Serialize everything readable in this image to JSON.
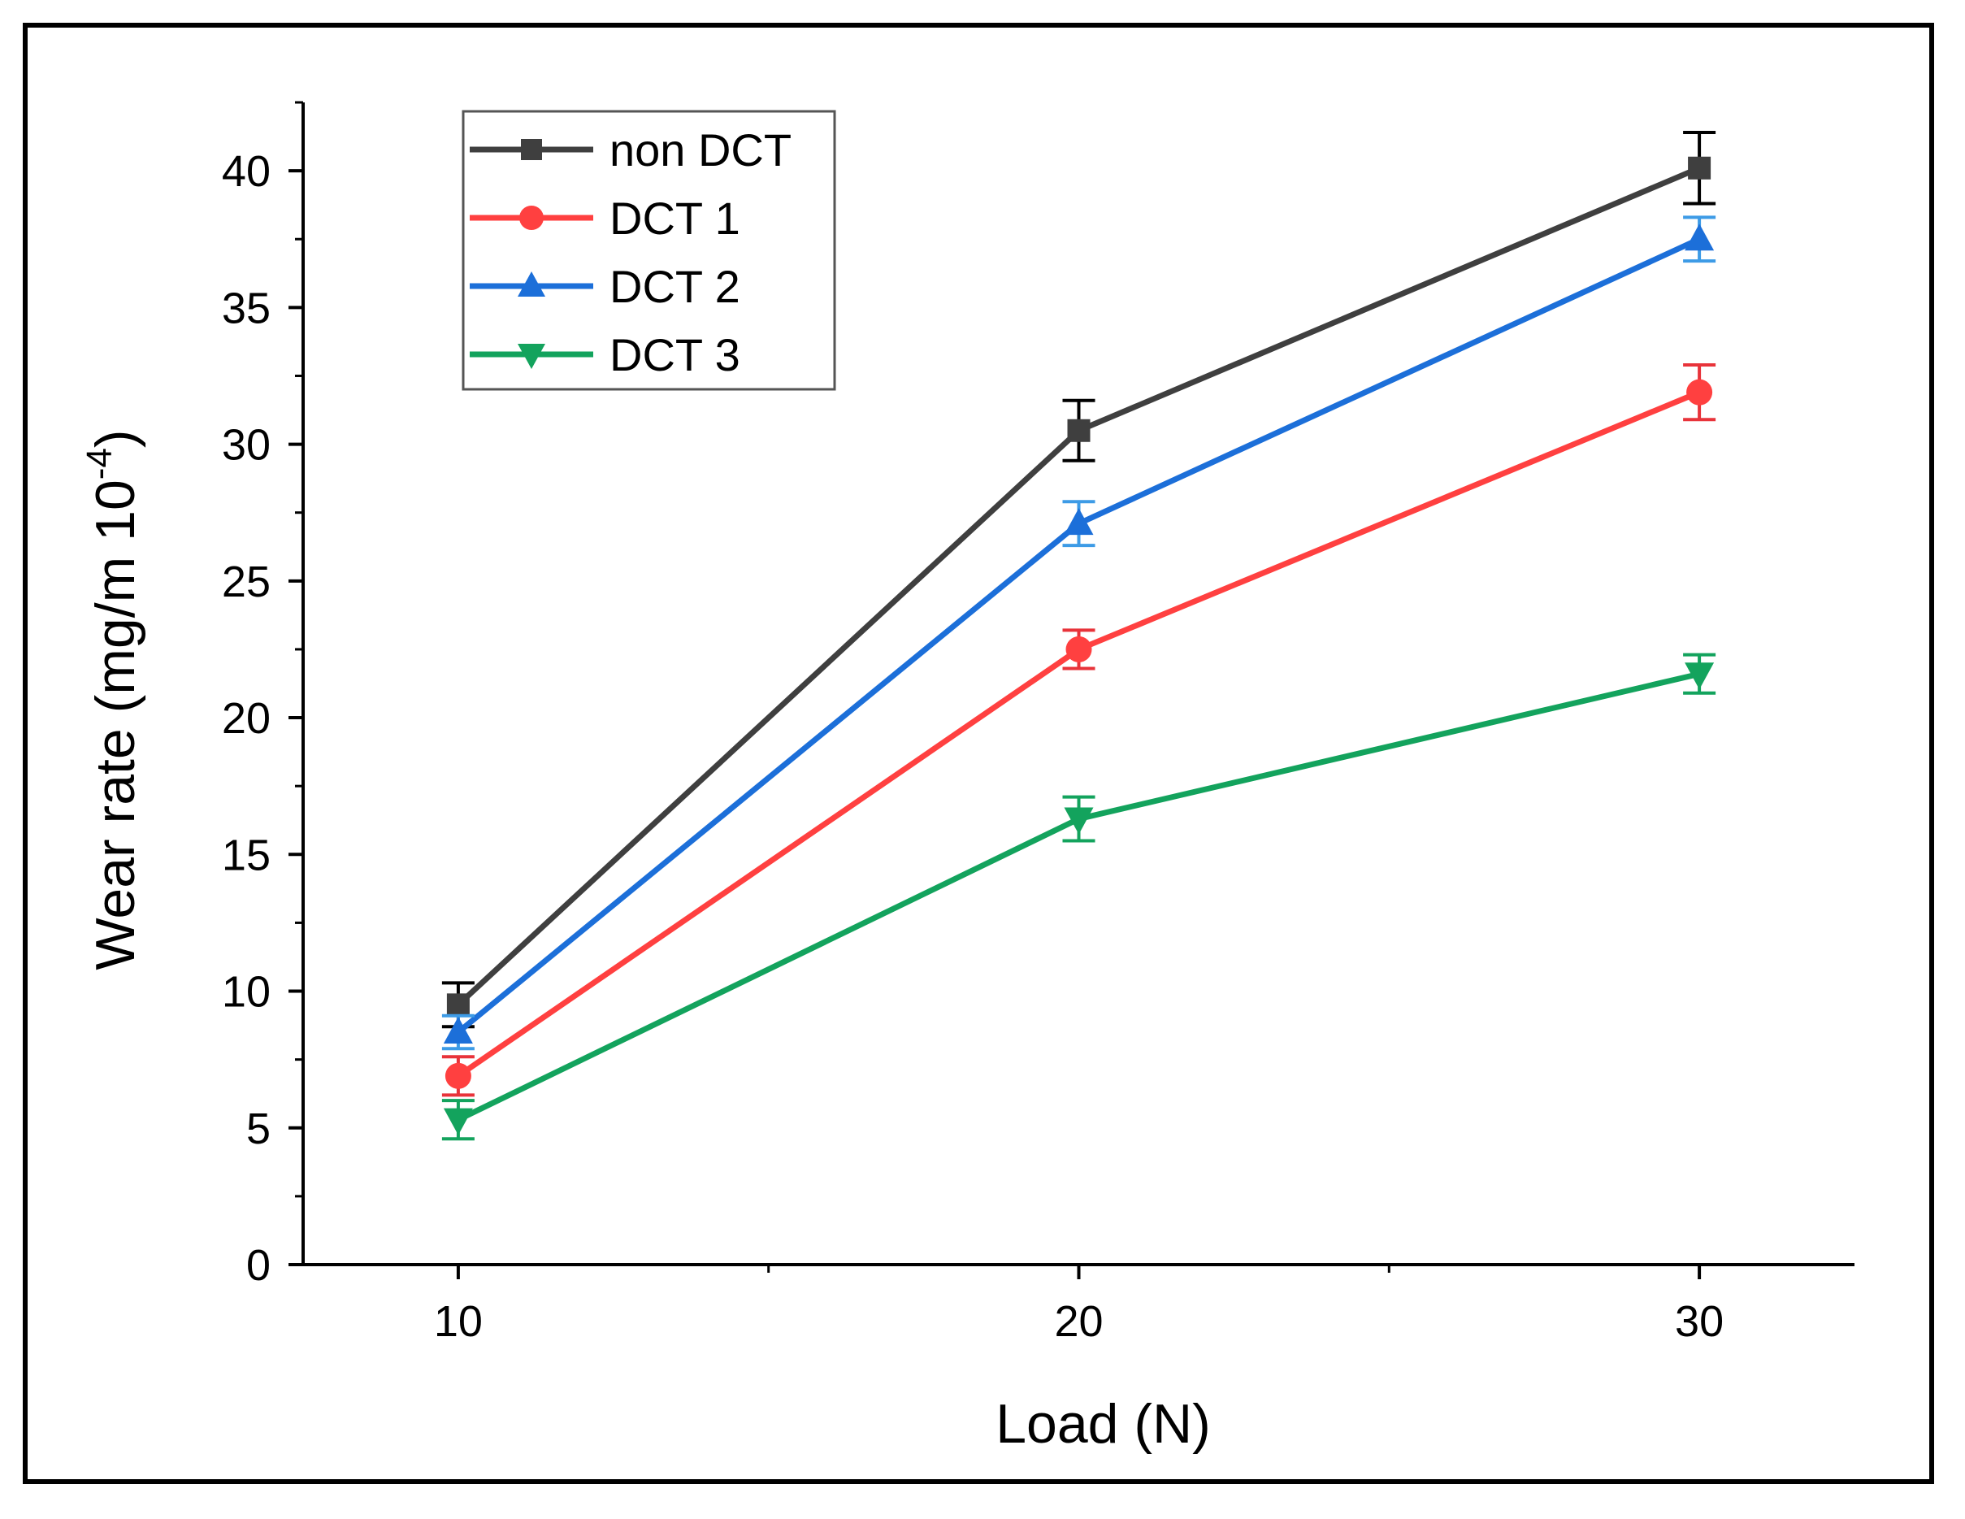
{
  "chart_data": {
    "type": "line",
    "title": "",
    "xlabel": "Load (N)",
    "ylabel_main": "Wear rate (mg/m 10",
    "ylabel_sup": "-4",
    "ylabel_close": ")",
    "x": [
      10,
      20,
      30
    ],
    "x_ticks": [
      "10",
      "20",
      "30"
    ],
    "xlim": [
      7.5,
      32.5
    ],
    "ylim": [
      0,
      42.5
    ],
    "y_ticks": [
      "0",
      "5",
      "10",
      "15",
      "20",
      "25",
      "30",
      "35",
      "40"
    ],
    "grid": false,
    "legend_position": "top-left",
    "series": [
      {
        "name": "non DCT",
        "color": "#3f3f3f",
        "errbar_color": "#000000",
        "marker": "square",
        "values": [
          9.5,
          30.5,
          40.1
        ],
        "errors": [
          0.8,
          1.1,
          1.3
        ]
      },
      {
        "name": "DCT 1",
        "color": "#ff4040",
        "errbar_color": "#e8333a",
        "marker": "circle",
        "values": [
          6.9,
          22.5,
          31.9
        ],
        "errors": [
          0.7,
          0.7,
          1.0
        ]
      },
      {
        "name": "DCT 2",
        "color": "#1c6fd9",
        "errbar_color": "#3d9be6",
        "marker": "triangle-up",
        "values": [
          8.5,
          27.1,
          37.5
        ],
        "errors": [
          0.6,
          0.8,
          0.8
        ]
      },
      {
        "name": "DCT 3",
        "color": "#13a35d",
        "errbar_color": "#13a35d",
        "marker": "triangle-down",
        "values": [
          5.3,
          16.3,
          21.6
        ],
        "errors": [
          0.7,
          0.8,
          0.7
        ]
      }
    ]
  }
}
